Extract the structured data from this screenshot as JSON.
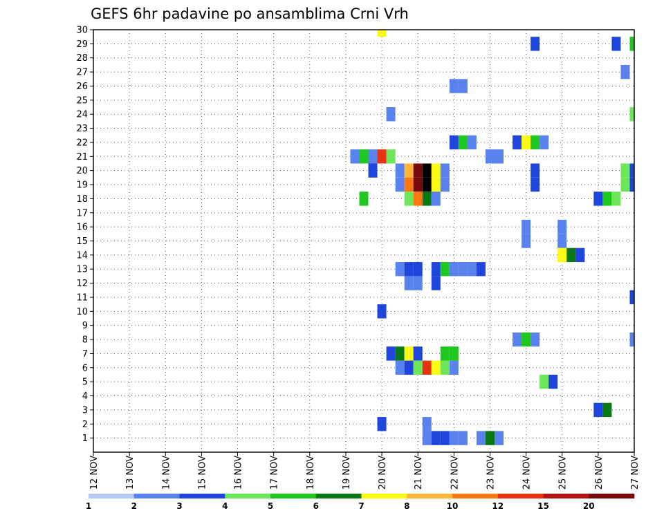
{
  "chart_data": {
    "type": "heatmap",
    "title": "GEFS 6hr padavine po ansamblima Crni Vrh",
    "xlabel": "",
    "ylabel": "",
    "x_tick_labels": [
      "12 NOV",
      "13 NOV",
      "14 NOV",
      "15 NOV",
      "16 NOV",
      "17 NOV",
      "18 NOV",
      "19 NOV",
      "20 NOV",
      "21 NOV",
      "22 NOV",
      "23 NOV",
      "24 NOV",
      "25 NOV",
      "26 NOV",
      "27 NOV"
    ],
    "xlim": [
      0,
      15
    ],
    "ylim": [
      0,
      30
    ],
    "y_ticks": [
      1,
      2,
      3,
      4,
      5,
      6,
      7,
      8,
      9,
      10,
      11,
      12,
      13,
      14,
      15,
      16,
      17,
      18,
      19,
      20,
      21,
      22,
      23,
      24,
      25,
      26,
      27,
      28,
      29,
      30
    ],
    "grid": true,
    "colorbar": {
      "labels": [
        "1",
        "2",
        "3",
        "4",
        "5",
        "6",
        "7",
        "8",
        "10",
        "12",
        "15",
        "20"
      ],
      "colors": [
        "#b3c6f7",
        "#5a82ee",
        "#1e46dc",
        "#6ee65a",
        "#1ec81e",
        "#0a7814",
        "#fafa14",
        "#ffb43c",
        "#ff7814",
        "#e63214",
        "#b41414",
        "#780a0a"
      ]
    },
    "cells": [
      [
        8.0,
        30,
        6
      ],
      [
        15.0,
        29,
        4
      ],
      [
        14.5,
        29,
        2
      ],
      [
        12.25,
        29,
        2
      ],
      [
        14.75,
        27,
        1
      ],
      [
        10.0,
        26,
        1
      ],
      [
        10.25,
        26,
        1
      ],
      [
        8.25,
        24,
        1
      ],
      [
        15.0,
        24,
        3
      ],
      [
        10.0,
        22,
        2
      ],
      [
        10.25,
        22,
        4
      ],
      [
        10.5,
        22,
        1
      ],
      [
        11.75,
        22,
        2
      ],
      [
        12.0,
        22,
        6
      ],
      [
        12.25,
        22,
        4
      ],
      [
        12.5,
        22,
        1
      ],
      [
        7.25,
        21,
        1
      ],
      [
        7.5,
        21,
        4
      ],
      [
        7.75,
        21,
        1
      ],
      [
        8.0,
        21,
        9
      ],
      [
        8.25,
        21,
        3
      ],
      [
        11.0,
        21,
        1
      ],
      [
        11.25,
        21,
        1
      ],
      [
        7.75,
        20,
        2
      ],
      [
        8.5,
        20,
        1
      ],
      [
        8.75,
        20,
        7
      ],
      [
        9.0,
        20,
        11
      ],
      [
        9.25,
        20,
        12
      ],
      [
        9.5,
        20,
        6
      ],
      [
        9.75,
        20,
        1
      ],
      [
        12.25,
        20,
        2
      ],
      [
        14.75,
        20,
        3
      ],
      [
        15.0,
        20,
        2
      ],
      [
        8.5,
        19,
        1
      ],
      [
        8.75,
        19,
        8
      ],
      [
        9.0,
        19,
        11
      ],
      [
        9.25,
        19,
        12
      ],
      [
        9.5,
        19,
        6
      ],
      [
        9.75,
        19,
        1
      ],
      [
        12.25,
        19,
        2
      ],
      [
        14.75,
        19,
        3
      ],
      [
        15.0,
        19,
        2
      ],
      [
        7.5,
        18,
        4
      ],
      [
        8.75,
        18,
        3
      ],
      [
        9.0,
        18,
        8
      ],
      [
        9.25,
        18,
        5
      ],
      [
        9.5,
        18,
        1
      ],
      [
        14.0,
        18,
        2
      ],
      [
        14.25,
        18,
        4
      ],
      [
        14.5,
        18,
        3
      ],
      [
        12.0,
        16,
        1
      ],
      [
        13.0,
        16,
        1
      ],
      [
        12.0,
        15,
        1
      ],
      [
        13.0,
        15,
        1
      ],
      [
        13.0,
        14,
        6
      ],
      [
        13.25,
        14,
        5
      ],
      [
        13.5,
        14,
        2
      ],
      [
        8.5,
        13,
        1
      ],
      [
        8.75,
        13,
        2
      ],
      [
        9.0,
        13,
        2
      ],
      [
        9.5,
        13,
        2
      ],
      [
        9.75,
        13,
        4
      ],
      [
        10.0,
        13,
        1
      ],
      [
        10.25,
        13,
        1
      ],
      [
        10.5,
        13,
        1
      ],
      [
        10.75,
        13,
        2
      ],
      [
        8.75,
        12,
        1
      ],
      [
        9.0,
        12,
        1
      ],
      [
        9.5,
        12,
        2
      ],
      [
        15.0,
        11,
        2
      ],
      [
        8.0,
        10,
        2
      ],
      [
        11.75,
        8,
        1
      ],
      [
        12.0,
        8,
        4
      ],
      [
        12.25,
        8,
        1
      ],
      [
        15.0,
        8,
        1
      ],
      [
        8.25,
        7,
        2
      ],
      [
        8.5,
        7,
        5
      ],
      [
        8.75,
        7,
        6
      ],
      [
        9.0,
        7,
        2
      ],
      [
        9.75,
        7,
        4
      ],
      [
        10.0,
        7,
        4
      ],
      [
        8.5,
        6,
        1
      ],
      [
        8.75,
        6,
        2
      ],
      [
        9.0,
        6,
        3
      ],
      [
        9.25,
        6,
        9
      ],
      [
        9.5,
        6,
        6
      ],
      [
        9.75,
        6,
        3
      ],
      [
        10.0,
        6,
        1
      ],
      [
        12.5,
        5,
        3
      ],
      [
        12.75,
        5,
        2
      ],
      [
        14.0,
        3,
        2
      ],
      [
        14.25,
        3,
        5
      ],
      [
        8.0,
        2,
        2
      ],
      [
        9.25,
        2,
        1
      ],
      [
        9.25,
        1,
        1
      ],
      [
        9.5,
        1,
        2
      ],
      [
        9.75,
        1,
        2
      ],
      [
        10.0,
        1,
        1
      ],
      [
        10.25,
        1,
        1
      ],
      [
        10.75,
        1,
        1
      ],
      [
        11.0,
        1,
        5
      ],
      [
        11.25,
        1,
        1
      ]
    ]
  }
}
